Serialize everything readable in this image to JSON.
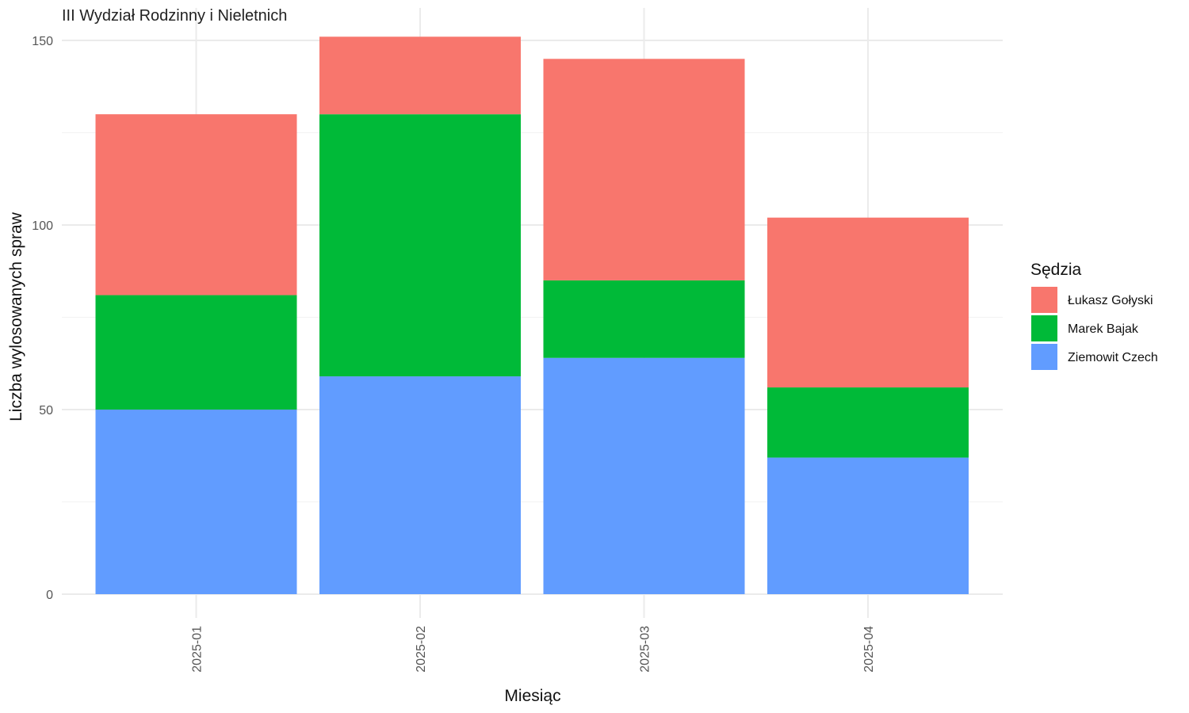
{
  "chart_data": {
    "type": "bar",
    "stacked": true,
    "title": "III Wydział Rodzinny i Nieletnich",
    "xlabel": "Miesiąc",
    "ylabel": "Liczba wylosowanych spraw",
    "categories": [
      "2025-01",
      "2025-02",
      "2025-03",
      "2025-04"
    ],
    "ylim": [
      0,
      155
    ],
    "yticks": [
      0,
      50,
      100,
      150
    ],
    "grid": true,
    "x_tick_rotation": -90,
    "legend": {
      "title": "Sędzia",
      "position": "right"
    },
    "series": [
      {
        "name": "Ziemowit Czech",
        "color": "#619CFF",
        "values": [
          50,
          59,
          64,
          37
        ]
      },
      {
        "name": "Marek Bajak",
        "color": "#00BA38",
        "values": [
          31,
          71,
          21,
          19
        ]
      },
      {
        "name": "Łukasz Gołyski",
        "color": "#F8766D",
        "values": [
          49,
          21,
          60,
          46
        ]
      }
    ],
    "legend_order": [
      "Łukasz Gołyski",
      "Marek Bajak",
      "Ziemowit Czech"
    ]
  }
}
